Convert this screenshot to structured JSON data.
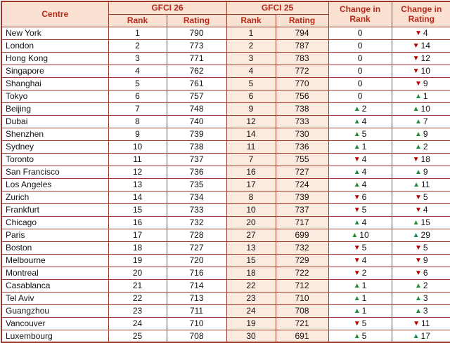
{
  "chart_data": {
    "type": "table",
    "headers": {
      "centre": "Centre",
      "gfci26": "GFCI 26",
      "gfci25": "GFCI 25",
      "rank": "Rank",
      "rating": "Rating",
      "change_in_rank": "Change in Rank",
      "change_in_rating": "Change in Rating"
    },
    "glyphs": {
      "up": "▲",
      "down": "▼"
    },
    "colors": {
      "header_bg": "#fbe1d2",
      "gfci25_column_bg": "#fceade",
      "border": "#9e3a2a",
      "header_text": "#b5291a",
      "up_arrow": "#208b3a",
      "down_arrow": "#b30000"
    },
    "rows": [
      {
        "centre": "New York",
        "g26_rank": "1",
        "g26_rating": "790",
        "g25_rank": "1",
        "g25_rating": "794",
        "chg_rank_dir": "none",
        "chg_rank": "0",
        "chg_rating_dir": "down",
        "chg_rating": "4"
      },
      {
        "centre": "London",
        "g26_rank": "2",
        "g26_rating": "773",
        "g25_rank": "2",
        "g25_rating": "787",
        "chg_rank_dir": "none",
        "chg_rank": "0",
        "chg_rating_dir": "down",
        "chg_rating": "14"
      },
      {
        "centre": "Hong Kong",
        "g26_rank": "3",
        "g26_rating": "771",
        "g25_rank": "3",
        "g25_rating": "783",
        "chg_rank_dir": "none",
        "chg_rank": "0",
        "chg_rating_dir": "down",
        "chg_rating": "12"
      },
      {
        "centre": "Singapore",
        "g26_rank": "4",
        "g26_rating": "762",
        "g25_rank": "4",
        "g25_rating": "772",
        "chg_rank_dir": "none",
        "chg_rank": "0",
        "chg_rating_dir": "down",
        "chg_rating": "10"
      },
      {
        "centre": "Shanghai",
        "g26_rank": "5",
        "g26_rating": "761",
        "g25_rank": "5",
        "g25_rating": "770",
        "chg_rank_dir": "none",
        "chg_rank": "0",
        "chg_rating_dir": "down",
        "chg_rating": "9"
      },
      {
        "centre": "Tokyo",
        "g26_rank": "6",
        "g26_rating": "757",
        "g25_rank": "6",
        "g25_rating": "756",
        "chg_rank_dir": "none",
        "chg_rank": "0",
        "chg_rating_dir": "up",
        "chg_rating": "1"
      },
      {
        "centre": "Beijing",
        "g26_rank": "7",
        "g26_rating": "748",
        "g25_rank": "9",
        "g25_rating": "738",
        "chg_rank_dir": "up",
        "chg_rank": "2",
        "chg_rating_dir": "up",
        "chg_rating": "10"
      },
      {
        "centre": "Dubai",
        "g26_rank": "8",
        "g26_rating": "740",
        "g25_rank": "12",
        "g25_rating": "733",
        "chg_rank_dir": "up",
        "chg_rank": "4",
        "chg_rating_dir": "up",
        "chg_rating": "7"
      },
      {
        "centre": "Shenzhen",
        "g26_rank": "9",
        "g26_rating": "739",
        "g25_rank": "14",
        "g25_rating": "730",
        "chg_rank_dir": "up",
        "chg_rank": "5",
        "chg_rating_dir": "up",
        "chg_rating": "9"
      },
      {
        "centre": "Sydney",
        "g26_rank": "10",
        "g26_rating": "738",
        "g25_rank": "11",
        "g25_rating": "736",
        "chg_rank_dir": "up",
        "chg_rank": "1",
        "chg_rating_dir": "up",
        "chg_rating": "2"
      },
      {
        "centre": "Toronto",
        "g26_rank": "11",
        "g26_rating": "737",
        "g25_rank": "7",
        "g25_rating": "755",
        "chg_rank_dir": "down",
        "chg_rank": "4",
        "chg_rating_dir": "down",
        "chg_rating": "18"
      },
      {
        "centre": "San Francisco",
        "g26_rank": "12",
        "g26_rating": "736",
        "g25_rank": "16",
        "g25_rating": "727",
        "chg_rank_dir": "up",
        "chg_rank": "4",
        "chg_rating_dir": "up",
        "chg_rating": "9"
      },
      {
        "centre": "Los Angeles",
        "g26_rank": "13",
        "g26_rating": "735",
        "g25_rank": "17",
        "g25_rating": "724",
        "chg_rank_dir": "up",
        "chg_rank": "4",
        "chg_rating_dir": "up",
        "chg_rating": "11"
      },
      {
        "centre": "Zurich",
        "g26_rank": "14",
        "g26_rating": "734",
        "g25_rank": "8",
        "g25_rating": "739",
        "chg_rank_dir": "down",
        "chg_rank": "6",
        "chg_rating_dir": "down",
        "chg_rating": "5"
      },
      {
        "centre": "Frankfurt",
        "g26_rank": "15",
        "g26_rating": "733",
        "g25_rank": "10",
        "g25_rating": "737",
        "chg_rank_dir": "down",
        "chg_rank": "5",
        "chg_rating_dir": "down",
        "chg_rating": "4"
      },
      {
        "centre": "Chicago",
        "g26_rank": "16",
        "g26_rating": "732",
        "g25_rank": "20",
        "g25_rating": "717",
        "chg_rank_dir": "up",
        "chg_rank": "4",
        "chg_rating_dir": "up",
        "chg_rating": "15"
      },
      {
        "centre": "Paris",
        "g26_rank": "17",
        "g26_rating": "728",
        "g25_rank": "27",
        "g25_rating": "699",
        "chg_rank_dir": "up",
        "chg_rank": "10",
        "chg_rating_dir": "up",
        "chg_rating": "29"
      },
      {
        "centre": "Boston",
        "g26_rank": "18",
        "g26_rating": "727",
        "g25_rank": "13",
        "g25_rating": "732",
        "chg_rank_dir": "down",
        "chg_rank": "5",
        "chg_rating_dir": "down",
        "chg_rating": "5"
      },
      {
        "centre": "Melbourne",
        "g26_rank": "19",
        "g26_rating": "720",
        "g25_rank": "15",
        "g25_rating": "729",
        "chg_rank_dir": "down",
        "chg_rank": "4",
        "chg_rating_dir": "down",
        "chg_rating": "9"
      },
      {
        "centre": "Montreal",
        "g26_rank": "20",
        "g26_rating": "716",
        "g25_rank": "18",
        "g25_rating": "722",
        "chg_rank_dir": "down",
        "chg_rank": "2",
        "chg_rating_dir": "down",
        "chg_rating": "6"
      },
      {
        "centre": "Casablanca",
        "g26_rank": "21",
        "g26_rating": "714",
        "g25_rank": "22",
        "g25_rating": "712",
        "chg_rank_dir": "up",
        "chg_rank": "1",
        "chg_rating_dir": "up",
        "chg_rating": "2"
      },
      {
        "centre": "Tel Aviv",
        "g26_rank": "22",
        "g26_rating": "713",
        "g25_rank": "23",
        "g25_rating": "710",
        "chg_rank_dir": "up",
        "chg_rank": "1",
        "chg_rating_dir": "up",
        "chg_rating": "3"
      },
      {
        "centre": "Guangzhou",
        "g26_rank": "23",
        "g26_rating": "711",
        "g25_rank": "24",
        "g25_rating": "708",
        "chg_rank_dir": "up",
        "chg_rank": "1",
        "chg_rating_dir": "up",
        "chg_rating": "3"
      },
      {
        "centre": "Vancouver",
        "g26_rank": "24",
        "g26_rating": "710",
        "g25_rank": "19",
        "g25_rating": "721",
        "chg_rank_dir": "down",
        "chg_rank": "5",
        "chg_rating_dir": "down",
        "chg_rating": "11"
      },
      {
        "centre": "Luxembourg",
        "g26_rank": "25",
        "g26_rating": "708",
        "g25_rank": "30",
        "g25_rating": "691",
        "chg_rank_dir": "up",
        "chg_rank": "5",
        "chg_rating_dir": "up",
        "chg_rating": "17"
      }
    ]
  }
}
